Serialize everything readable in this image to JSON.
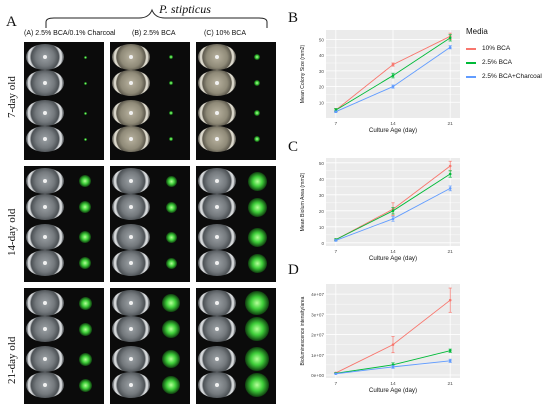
{
  "panels": {
    "a_letter": "A",
    "b_letter": "B",
    "c_letter": "C",
    "d_letter": "D"
  },
  "panel_a": {
    "species": "P. stipticus",
    "columns": [
      "(A) 2.5% BCA/0.1% Charcoal",
      "(B) 2.5% BCA",
      "(C) 10% BCA"
    ],
    "rows": [
      "7-day old",
      "14-day old",
      "21-day old"
    ]
  },
  "legend": {
    "title": "Media",
    "items": [
      {
        "label": "10% BCA",
        "color": "#f8766d"
      },
      {
        "label": "2.5% BCA",
        "color": "#00ba38"
      },
      {
        "label": "2.5% BCA+Charcoal",
        "color": "#619cff"
      }
    ]
  },
  "chart_data": [
    {
      "id": "B",
      "type": "line",
      "x": [
        7,
        14,
        21
      ],
      "xlabel": "Culture Age (day)",
      "ylabel": "Mean Colony Size (mm2)",
      "xticks": [
        "7",
        "14",
        "21"
      ],
      "yticks": [
        10,
        20,
        30,
        40,
        50
      ],
      "ytick_labels": [
        "10",
        "20",
        "30",
        "40",
        "50"
      ],
      "ylim": [
        0,
        56
      ],
      "series": [
        {
          "name": "10% BCA",
          "color": "#f8766d",
          "values": [
            5,
            34,
            52
          ],
          "err": [
            1,
            1,
            2
          ]
        },
        {
          "name": "2.5% BCA",
          "color": "#00ba38",
          "values": [
            5,
            27,
            51
          ],
          "err": [
            1,
            1.5,
            2
          ]
        },
        {
          "name": "2.5% BCA+Charcoal",
          "color": "#619cff",
          "values": [
            4,
            20,
            45
          ],
          "err": [
            0.5,
            1,
            1
          ]
        }
      ]
    },
    {
      "id": "C",
      "type": "line",
      "x": [
        7,
        14,
        21
      ],
      "xlabel": "Culture Age (day)",
      "ylabel": "Mean Biolum Area (mm2)",
      "xticks": [
        "7",
        "14",
        "21"
      ],
      "yticks": [
        0,
        10,
        20,
        30,
        40,
        50
      ],
      "ytick_labels": [
        "0",
        "10",
        "20",
        "30",
        "40",
        "50"
      ],
      "ylim": [
        -2,
        53
      ],
      "series": [
        {
          "name": "10% BCA",
          "color": "#f8766d",
          "values": [
            2,
            21,
            48
          ],
          "err": [
            0.5,
            4,
            3
          ]
        },
        {
          "name": "2.5% BCA",
          "color": "#00ba38",
          "values": [
            2,
            20,
            43
          ],
          "err": [
            0.5,
            2,
            2
          ]
        },
        {
          "name": "2.5% BCA+Charcoal",
          "color": "#619cff",
          "values": [
            1.5,
            15,
            34
          ],
          "err": [
            0.5,
            1.5,
            1.5
          ]
        }
      ]
    },
    {
      "id": "D",
      "type": "line",
      "x": [
        7,
        14,
        21
      ],
      "xlabel": "Culture Age (day)",
      "ylabel": "Bioluminescence intensity/area",
      "xticks": [
        "7",
        "14",
        "21"
      ],
      "yticks": [
        0,
        10000000,
        20000000,
        30000000,
        40000000
      ],
      "ytick_labels": [
        "0e+00",
        "1e+07",
        "2e+07",
        "3e+07",
        "4e+07"
      ],
      "ylim": [
        -1500000,
        45000000
      ],
      "series": [
        {
          "name": "10% BCA",
          "color": "#f8766d",
          "values": [
            1000000,
            15000000,
            37000000
          ],
          "err": [
            300000,
            4000000,
            6000000
          ]
        },
        {
          "name": "2.5% BCA",
          "color": "#00ba38",
          "values": [
            800000,
            5000000,
            12000000
          ],
          "err": [
            200000,
            1000000,
            800000
          ]
        },
        {
          "name": "2.5% BCA+Charcoal",
          "color": "#619cff",
          "values": [
            600000,
            4000000,
            7000000
          ],
          "err": [
            200000,
            700000,
            800000
          ]
        }
      ]
    }
  ]
}
